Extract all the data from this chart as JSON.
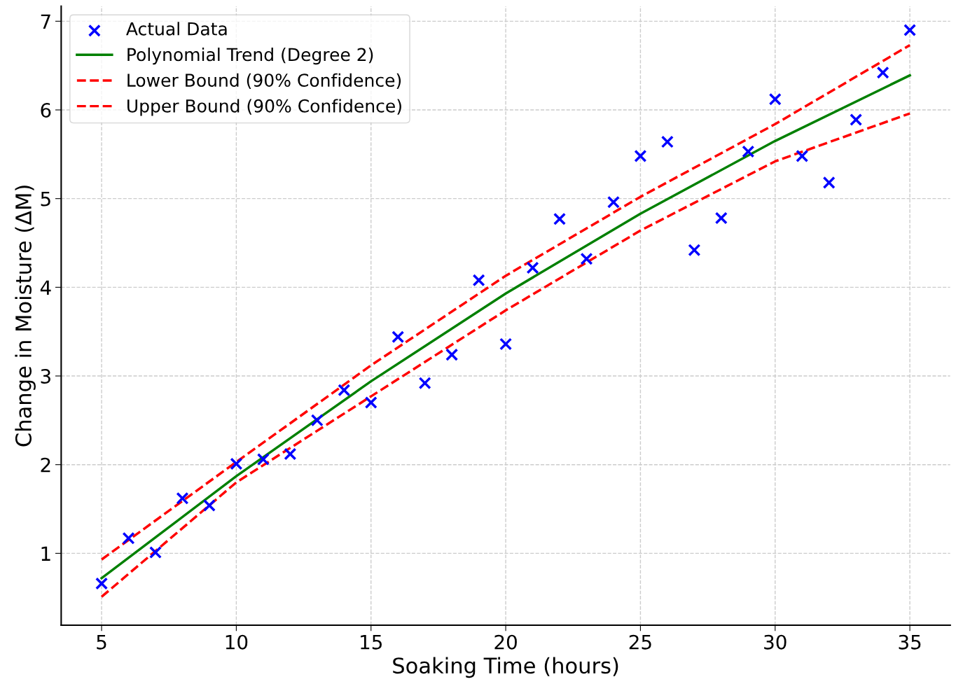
{
  "chart_data": {
    "type": "scatter",
    "xlabel": "Soaking Time (hours)",
    "ylabel": "Change in Moisture (ΔM)",
    "xlim": [
      3.5,
      36.5
    ],
    "ylim": [
      0.19,
      7.17
    ],
    "xticks": [
      5,
      10,
      15,
      20,
      25,
      30,
      35
    ],
    "yticks": [
      1,
      2,
      3,
      4,
      5,
      6,
      7
    ],
    "grid": true,
    "legend": "top left",
    "series": [
      {
        "name": "Actual Data",
        "marker": "cross",
        "color": "#0000ff",
        "x": [
          5,
          6,
          7,
          8,
          9,
          10,
          11,
          12,
          13,
          14,
          15,
          16,
          17,
          18,
          19,
          20,
          21,
          22,
          23,
          24,
          25,
          26,
          27,
          28,
          29,
          30,
          31,
          32,
          33,
          34,
          35
        ],
        "values": [
          0.66,
          1.17,
          1.01,
          1.62,
          1.54,
          2.01,
          2.06,
          2.12,
          2.5,
          2.84,
          2.7,
          3.44,
          2.92,
          3.24,
          4.08,
          3.36,
          4.22,
          4.77,
          4.32,
          4.96,
          5.48,
          5.64,
          4.42,
          4.78,
          5.53,
          6.12,
          5.48,
          5.18,
          5.89,
          6.42,
          6.9
        ]
      },
      {
        "name": "Polynomial Trend (Degree 2)",
        "type": "line",
        "line_style": "solid",
        "color": "#008000",
        "x": [
          5,
          10,
          15,
          20,
          25,
          30,
          35
        ],
        "values": [
          0.72,
          1.87,
          2.94,
          3.93,
          4.83,
          5.65,
          6.39
        ]
      },
      {
        "name": "Lower Bound (90% Confidence)",
        "type": "line",
        "line_style": "dashed",
        "color": "#ff0000",
        "x": [
          5,
          10,
          15,
          20,
          25,
          30,
          35
        ],
        "values": [
          0.51,
          1.8,
          2.77,
          3.74,
          4.64,
          5.42,
          5.96
        ]
      },
      {
        "name": "Upper Bound (90% Confidence)",
        "type": "line",
        "line_style": "dashed",
        "color": "#ff0000",
        "x": [
          5,
          10,
          15,
          20,
          25,
          30,
          35
        ],
        "values": [
          0.93,
          2.03,
          3.12,
          4.13,
          5.02,
          5.84,
          6.73
        ]
      }
    ]
  }
}
